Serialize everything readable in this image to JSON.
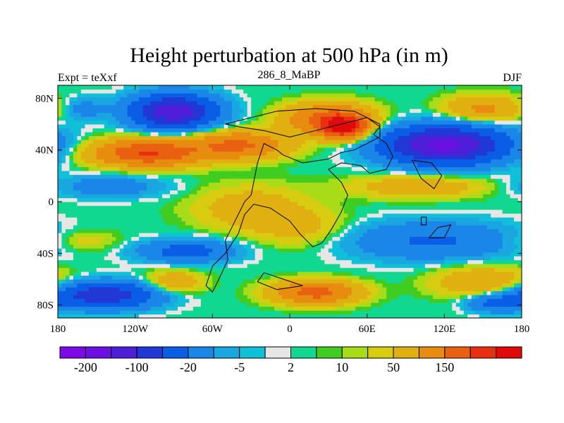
{
  "chart_data": {
    "type": "heatmap",
    "title": "Height perturbation at 500 hPa (in m)",
    "left_label": "Expt = teXxf",
    "center_label": "286_8_MaBP",
    "right_label": "DJF",
    "xlabel": "",
    "ylabel": "",
    "xlim": [
      -180,
      180
    ],
    "ylim": [
      -90,
      90
    ],
    "x_ticks": [
      {
        "value": -180,
        "label": "180"
      },
      {
        "value": -120,
        "label": "120W"
      },
      {
        "value": -60,
        "label": "60W"
      },
      {
        "value": 0,
        "label": "0"
      },
      {
        "value": 60,
        "label": "60E"
      },
      {
        "value": 120,
        "label": "120E"
      },
      {
        "value": 180,
        "label": "180"
      }
    ],
    "y_ticks": [
      {
        "value": 80,
        "label": "80N"
      },
      {
        "value": 40,
        "label": "40N"
      },
      {
        "value": 0,
        "label": "0"
      },
      {
        "value": -40,
        "label": "40S"
      },
      {
        "value": -80,
        "label": "80S"
      }
    ],
    "colorbar": {
      "colors": [
        "#7d0ae6",
        "#6a10e0",
        "#4f1ed8",
        "#2238d6",
        "#0a5ee6",
        "#1a86e8",
        "#1aa6e0",
        "#10c0d8",
        "#e6e6e6",
        "#10d890",
        "#40cc20",
        "#a8dc18",
        "#d8cc10",
        "#e0b010",
        "#e88c10",
        "#e86010",
        "#e83010",
        "#e00a0a"
      ],
      "labels": [
        {
          "index": 1,
          "text": "-200"
        },
        {
          "index": 3,
          "text": "-100"
        },
        {
          "index": 5,
          "text": "-20"
        },
        {
          "index": 7,
          "text": "-5"
        },
        {
          "index": 9,
          "text": "2"
        },
        {
          "index": 11,
          "text": "10"
        },
        {
          "index": 13,
          "text": "50"
        },
        {
          "index": 15,
          "text": "150"
        }
      ]
    },
    "field_anomalies": [
      {
        "lon": -90,
        "lat": 70,
        "value": -190,
        "spread_lon": 22,
        "spread_lat": 9
      },
      {
        "lon": -160,
        "lat": 72,
        "value": -30,
        "spread_lon": 12,
        "spread_lat": 6
      },
      {
        "lon": -110,
        "lat": 38,
        "value": 155,
        "spread_lon": 28,
        "spread_lat": 7
      },
      {
        "lon": -40,
        "lat": 44,
        "value": 110,
        "spread_lon": 25,
        "spread_lat": 7
      },
      {
        "lon": 42,
        "lat": 58,
        "value": 185,
        "spread_lon": 12,
        "spread_lat": 6
      },
      {
        "lon": 30,
        "lat": 64,
        "value": 120,
        "spread_lon": 22,
        "spread_lat": 8
      },
      {
        "lon": 120,
        "lat": 44,
        "value": -215,
        "spread_lon": 32,
        "spread_lat": 10
      },
      {
        "lon": 150,
        "lat": 72,
        "value": 60,
        "spread_lon": 20,
        "spread_lat": 7
      },
      {
        "lon": -140,
        "lat": 12,
        "value": -35,
        "spread_lon": 30,
        "spread_lat": 6
      },
      {
        "lon": 100,
        "lat": 12,
        "value": 40,
        "spread_lon": 35,
        "spread_lat": 6
      },
      {
        "lon": -30,
        "lat": -5,
        "value": 35,
        "spread_lon": 30,
        "spread_lat": 12
      },
      {
        "lon": 10,
        "lat": -20,
        "value": 25,
        "spread_lon": 25,
        "spread_lat": 10
      },
      {
        "lon": -160,
        "lat": -30,
        "value": 20,
        "spread_lon": 20,
        "spread_lat": 6
      },
      {
        "lon": 110,
        "lat": -30,
        "value": -55,
        "spread_lon": 45,
        "spread_lat": 10
      },
      {
        "lon": -80,
        "lat": -38,
        "value": -70,
        "spread_lon": 25,
        "spread_lat": 6
      },
      {
        "lon": -145,
        "lat": -72,
        "value": -140,
        "spread_lon": 28,
        "spread_lat": 7
      },
      {
        "lon": -90,
        "lat": -62,
        "value": 45,
        "spread_lon": 15,
        "spread_lat": 6
      },
      {
        "lon": 20,
        "lat": -70,
        "value": 120,
        "spread_lon": 22,
        "spread_lat": 6
      },
      {
        "lon": 150,
        "lat": -62,
        "value": 50,
        "spread_lon": 25,
        "spread_lat": 8
      },
      {
        "lon": 160,
        "lat": -78,
        "value": -60,
        "spread_lon": 15,
        "spread_lat": 5
      }
    ],
    "coastline_outline": [
      [
        [
          -50,
          60
        ],
        [
          -30,
          65
        ],
        [
          -10,
          70
        ],
        [
          20,
          72
        ],
        [
          50,
          70
        ],
        [
          70,
          60
        ],
        [
          70,
          50
        ],
        [
          50,
          40
        ],
        [
          40,
          38
        ],
        [
          30,
          33
        ],
        [
          10,
          30
        ],
        [
          -5,
          36
        ],
        [
          -10,
          40
        ],
        [
          -20,
          45
        ],
        [
          -25,
          30
        ],
        [
          -28,
          15
        ],
        [
          -30,
          5
        ],
        [
          -35,
          0
        ],
        [
          -40,
          -10
        ],
        [
          -45,
          -20
        ],
        [
          -50,
          -30
        ],
        [
          -48,
          -45
        ],
        [
          -55,
          -60
        ],
        [
          -60,
          -70
        ],
        [
          -65,
          -65
        ],
        [
          -60,
          -50
        ],
        [
          -50,
          -40
        ],
        [
          -40,
          -25
        ],
        [
          -35,
          -10
        ],
        [
          -28,
          -2
        ],
        [
          -15,
          -5
        ],
        [
          0,
          -15
        ],
        [
          8,
          -25
        ],
        [
          18,
          -35
        ],
        [
          25,
          -32
        ],
        [
          32,
          -22
        ],
        [
          40,
          -8
        ],
        [
          45,
          5
        ],
        [
          40,
          15
        ],
        [
          30,
          25
        ],
        [
          40,
          30
        ],
        [
          55,
          28
        ],
        [
          62,
          22
        ],
        [
          75,
          25
        ],
        [
          80,
          35
        ],
        [
          75,
          45
        ],
        [
          65,
          52
        ],
        [
          70,
          58
        ],
        [
          60,
          65
        ],
        [
          40,
          60
        ],
        [
          20,
          55
        ],
        [
          0,
          50
        ],
        [
          -20,
          55
        ],
        [
          -40,
          58
        ],
        [
          -50,
          60
        ]
      ],
      [
        [
          95,
          32
        ],
        [
          110,
          30
        ],
        [
          118,
          20
        ],
        [
          112,
          10
        ],
        [
          102,
          18
        ],
        [
          95,
          32
        ]
      ],
      [
        [
          108,
          -28
        ],
        [
          115,
          -20
        ],
        [
          125,
          -18
        ],
        [
          120,
          -28
        ],
        [
          108,
          -28
        ]
      ],
      [
        [
          102,
          -12
        ],
        [
          106,
          -12
        ],
        [
          106,
          -18
        ],
        [
          102,
          -18
        ],
        [
          102,
          -12
        ]
      ],
      [
        [
          -20,
          -55
        ],
        [
          -5,
          -60
        ],
        [
          10,
          -65
        ],
        [
          -10,
          -68
        ],
        [
          -25,
          -62
        ],
        [
          -20,
          -55
        ]
      ]
    ]
  }
}
